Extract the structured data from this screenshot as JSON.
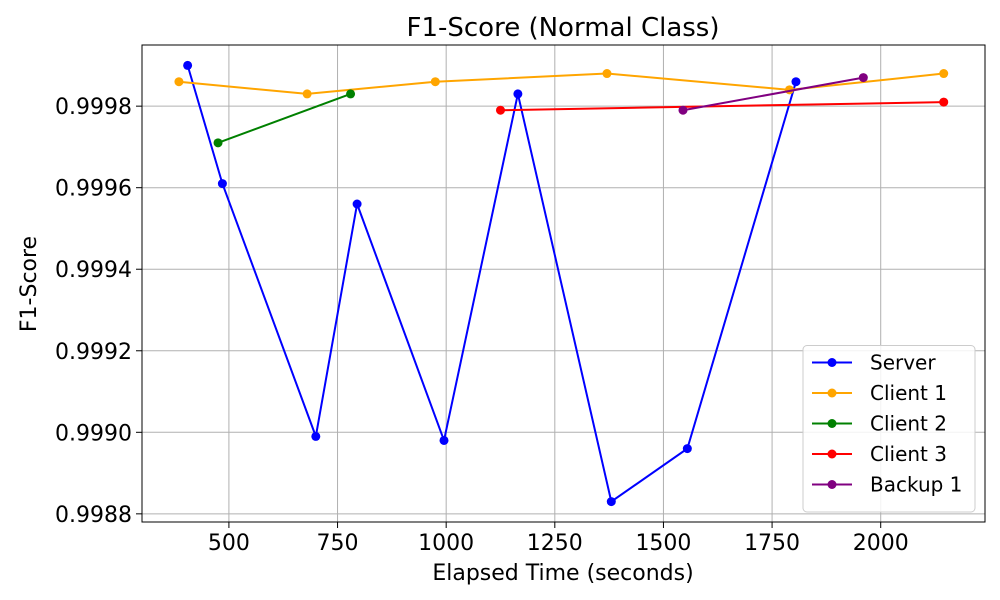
{
  "chart_data": {
    "type": "line",
    "title": "F1-Score (Normal Class)",
    "xlabel": "Elapsed Time (seconds)",
    "ylabel": "F1-Score",
    "xlim": [
      300,
      2240
    ],
    "ylim": [
      0.99878,
      0.99995
    ],
    "xticks": [
      500,
      750,
      1000,
      1250,
      1500,
      1750,
      2000
    ],
    "xtick_labels": [
      "500",
      "750",
      "1000",
      "1250",
      "1500",
      "1750",
      "2000"
    ],
    "yticks": [
      0.9988,
      0.999,
      0.9992,
      0.9994,
      0.9996,
      0.9998
    ],
    "ytick_labels": [
      "0.9988",
      "0.9990",
      "0.9992",
      "0.9994",
      "0.9996",
      "0.9998"
    ],
    "grid": true,
    "legend_position": "bottom-right",
    "series": [
      {
        "name": "Server",
        "color": "#0000ff",
        "x": [
          405,
          485,
          700,
          795,
          995,
          1165,
          1380,
          1555,
          1805
        ],
        "y": [
          0.9999,
          0.99961,
          0.99899,
          0.99956,
          0.99898,
          0.99983,
          0.99883,
          0.99896,
          0.99986
        ]
      },
      {
        "name": "Client 1",
        "color": "#ffa500",
        "x": [
          385,
          680,
          975,
          1370,
          1790,
          2145
        ],
        "y": [
          0.99986,
          0.99983,
          0.99986,
          0.99988,
          0.99984,
          0.99988
        ]
      },
      {
        "name": "Client 2",
        "color": "#008000",
        "x": [
          475,
          780
        ],
        "y": [
          0.99971,
          0.99983
        ]
      },
      {
        "name": "Client 3",
        "color": "#ff0000",
        "x": [
          1125,
          2145
        ],
        "y": [
          0.99979,
          0.99981
        ]
      },
      {
        "name": "Backup 1",
        "color": "#800080",
        "x": [
          1545,
          1960
        ],
        "y": [
          0.99979,
          0.99987
        ]
      }
    ]
  }
}
